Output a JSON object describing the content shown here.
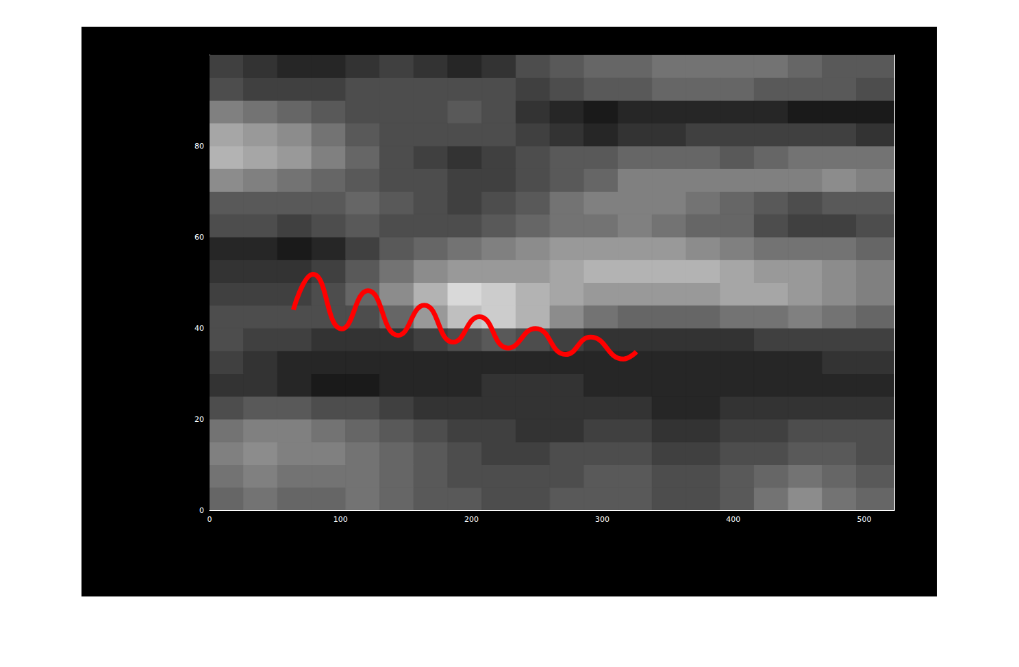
{
  "chart_data": {
    "type": "heatmap",
    "xlim": [
      0,
      523
    ],
    "ylim": [
      0,
      100
    ],
    "xticks": [
      0,
      100,
      200,
      300,
      400,
      500
    ],
    "yticks": [
      0,
      20,
      40,
      60,
      80
    ],
    "zlim": [
      0,
      1
    ],
    "x_bins": [
      0,
      26,
      52,
      78,
      104,
      130,
      156,
      182,
      208,
      234,
      260,
      286,
      312,
      338,
      364,
      390,
      416,
      442,
      468,
      494,
      523
    ],
    "y_bins": [
      0,
      5,
      10,
      15,
      20,
      25,
      30,
      35,
      40,
      45,
      50,
      55,
      60,
      65,
      70,
      75,
      80,
      85,
      90,
      95,
      100
    ],
    "cells": [
      [
        0.4,
        0.45,
        0.4,
        0.4,
        0.45,
        0.4,
        0.35,
        0.35,
        0.3,
        0.3,
        0.35,
        0.35,
        0.35,
        0.3,
        0.3,
        0.35,
        0.45,
        0.55,
        0.45,
        0.4
      ],
      [
        0.45,
        0.5,
        0.45,
        0.45,
        0.45,
        0.4,
        0.35,
        0.3,
        0.3,
        0.3,
        0.3,
        0.35,
        0.35,
        0.3,
        0.3,
        0.35,
        0.4,
        0.45,
        0.4,
        0.35
      ],
      [
        0.5,
        0.55,
        0.5,
        0.5,
        0.45,
        0.4,
        0.35,
        0.3,
        0.25,
        0.25,
        0.3,
        0.3,
        0.3,
        0.25,
        0.25,
        0.3,
        0.3,
        0.35,
        0.35,
        0.3
      ],
      [
        0.45,
        0.5,
        0.5,
        0.45,
        0.4,
        0.35,
        0.3,
        0.25,
        0.25,
        0.2,
        0.2,
        0.25,
        0.25,
        0.2,
        0.2,
        0.25,
        0.25,
        0.3,
        0.3,
        0.3
      ],
      [
        0.3,
        0.35,
        0.35,
        0.3,
        0.3,
        0.25,
        0.2,
        0.2,
        0.2,
        0.2,
        0.2,
        0.2,
        0.2,
        0.15,
        0.15,
        0.2,
        0.2,
        0.2,
        0.2,
        0.2
      ],
      [
        0.2,
        0.2,
        0.15,
        0.1,
        0.1,
        0.15,
        0.15,
        0.15,
        0.2,
        0.2,
        0.2,
        0.15,
        0.15,
        0.15,
        0.15,
        0.15,
        0.15,
        0.15,
        0.15,
        0.15
      ],
      [
        0.25,
        0.2,
        0.15,
        0.15,
        0.15,
        0.15,
        0.15,
        0.15,
        0.15,
        0.15,
        0.15,
        0.15,
        0.15,
        0.15,
        0.15,
        0.15,
        0.15,
        0.15,
        0.2,
        0.2
      ],
      [
        0.3,
        0.25,
        0.25,
        0.2,
        0.2,
        0.2,
        0.25,
        0.3,
        0.35,
        0.3,
        0.25,
        0.2,
        0.2,
        0.2,
        0.2,
        0.2,
        0.25,
        0.25,
        0.25,
        0.25
      ],
      [
        0.3,
        0.3,
        0.3,
        0.3,
        0.3,
        0.4,
        0.6,
        0.75,
        0.8,
        0.7,
        0.55,
        0.45,
        0.4,
        0.4,
        0.4,
        0.45,
        0.45,
        0.5,
        0.45,
        0.4
      ],
      [
        0.25,
        0.25,
        0.25,
        0.3,
        0.4,
        0.55,
        0.7,
        0.85,
        0.8,
        0.7,
        0.65,
        0.6,
        0.6,
        0.6,
        0.6,
        0.65,
        0.65,
        0.6,
        0.55,
        0.5
      ],
      [
        0.2,
        0.2,
        0.2,
        0.25,
        0.35,
        0.45,
        0.55,
        0.6,
        0.6,
        0.6,
        0.65,
        0.7,
        0.7,
        0.7,
        0.7,
        0.65,
        0.6,
        0.6,
        0.55,
        0.5
      ],
      [
        0.15,
        0.15,
        0.1,
        0.15,
        0.25,
        0.35,
        0.4,
        0.45,
        0.5,
        0.55,
        0.6,
        0.6,
        0.6,
        0.6,
        0.55,
        0.5,
        0.45,
        0.45,
        0.45,
        0.4
      ],
      [
        0.3,
        0.3,
        0.25,
        0.3,
        0.35,
        0.3,
        0.3,
        0.3,
        0.35,
        0.4,
        0.45,
        0.45,
        0.5,
        0.45,
        0.4,
        0.4,
        0.3,
        0.25,
        0.25,
        0.3
      ],
      [
        0.35,
        0.35,
        0.35,
        0.35,
        0.4,
        0.35,
        0.3,
        0.25,
        0.3,
        0.35,
        0.45,
        0.5,
        0.5,
        0.5,
        0.45,
        0.4,
        0.35,
        0.3,
        0.35,
        0.35
      ],
      [
        0.55,
        0.5,
        0.45,
        0.4,
        0.35,
        0.3,
        0.3,
        0.25,
        0.25,
        0.3,
        0.35,
        0.4,
        0.5,
        0.5,
        0.5,
        0.5,
        0.5,
        0.5,
        0.55,
        0.5
      ],
      [
        0.7,
        0.65,
        0.6,
        0.5,
        0.4,
        0.3,
        0.25,
        0.2,
        0.25,
        0.3,
        0.35,
        0.35,
        0.4,
        0.4,
        0.4,
        0.35,
        0.4,
        0.45,
        0.45,
        0.45
      ],
      [
        0.65,
        0.6,
        0.55,
        0.45,
        0.35,
        0.3,
        0.3,
        0.3,
        0.3,
        0.25,
        0.2,
        0.15,
        0.2,
        0.2,
        0.25,
        0.25,
        0.25,
        0.25,
        0.25,
        0.2
      ],
      [
        0.5,
        0.45,
        0.4,
        0.35,
        0.3,
        0.3,
        0.3,
        0.35,
        0.3,
        0.2,
        0.15,
        0.1,
        0.15,
        0.15,
        0.15,
        0.15,
        0.15,
        0.1,
        0.1,
        0.1
      ],
      [
        0.3,
        0.25,
        0.25,
        0.25,
        0.3,
        0.3,
        0.3,
        0.3,
        0.3,
        0.25,
        0.3,
        0.35,
        0.35,
        0.4,
        0.4,
        0.4,
        0.35,
        0.35,
        0.35,
        0.3
      ],
      [
        0.25,
        0.2,
        0.15,
        0.15,
        0.2,
        0.25,
        0.2,
        0.15,
        0.2,
        0.3,
        0.35,
        0.4,
        0.4,
        0.45,
        0.45,
        0.45,
        0.45,
        0.4,
        0.35,
        0.35
      ]
    ],
    "series": [
      {
        "type": "line",
        "color": "#ff0000",
        "x": [
          64,
          79,
          101,
          121,
          144,
          164,
          186,
          206,
          228,
          249,
          272,
          291,
          316,
          326
        ],
        "values": [
          44,
          51.8,
          39.8,
          48.2,
          38.4,
          45,
          36.9,
          42.5,
          35.6,
          39.9,
          34.2,
          38,
          33.2,
          34.8
        ]
      }
    ]
  }
}
